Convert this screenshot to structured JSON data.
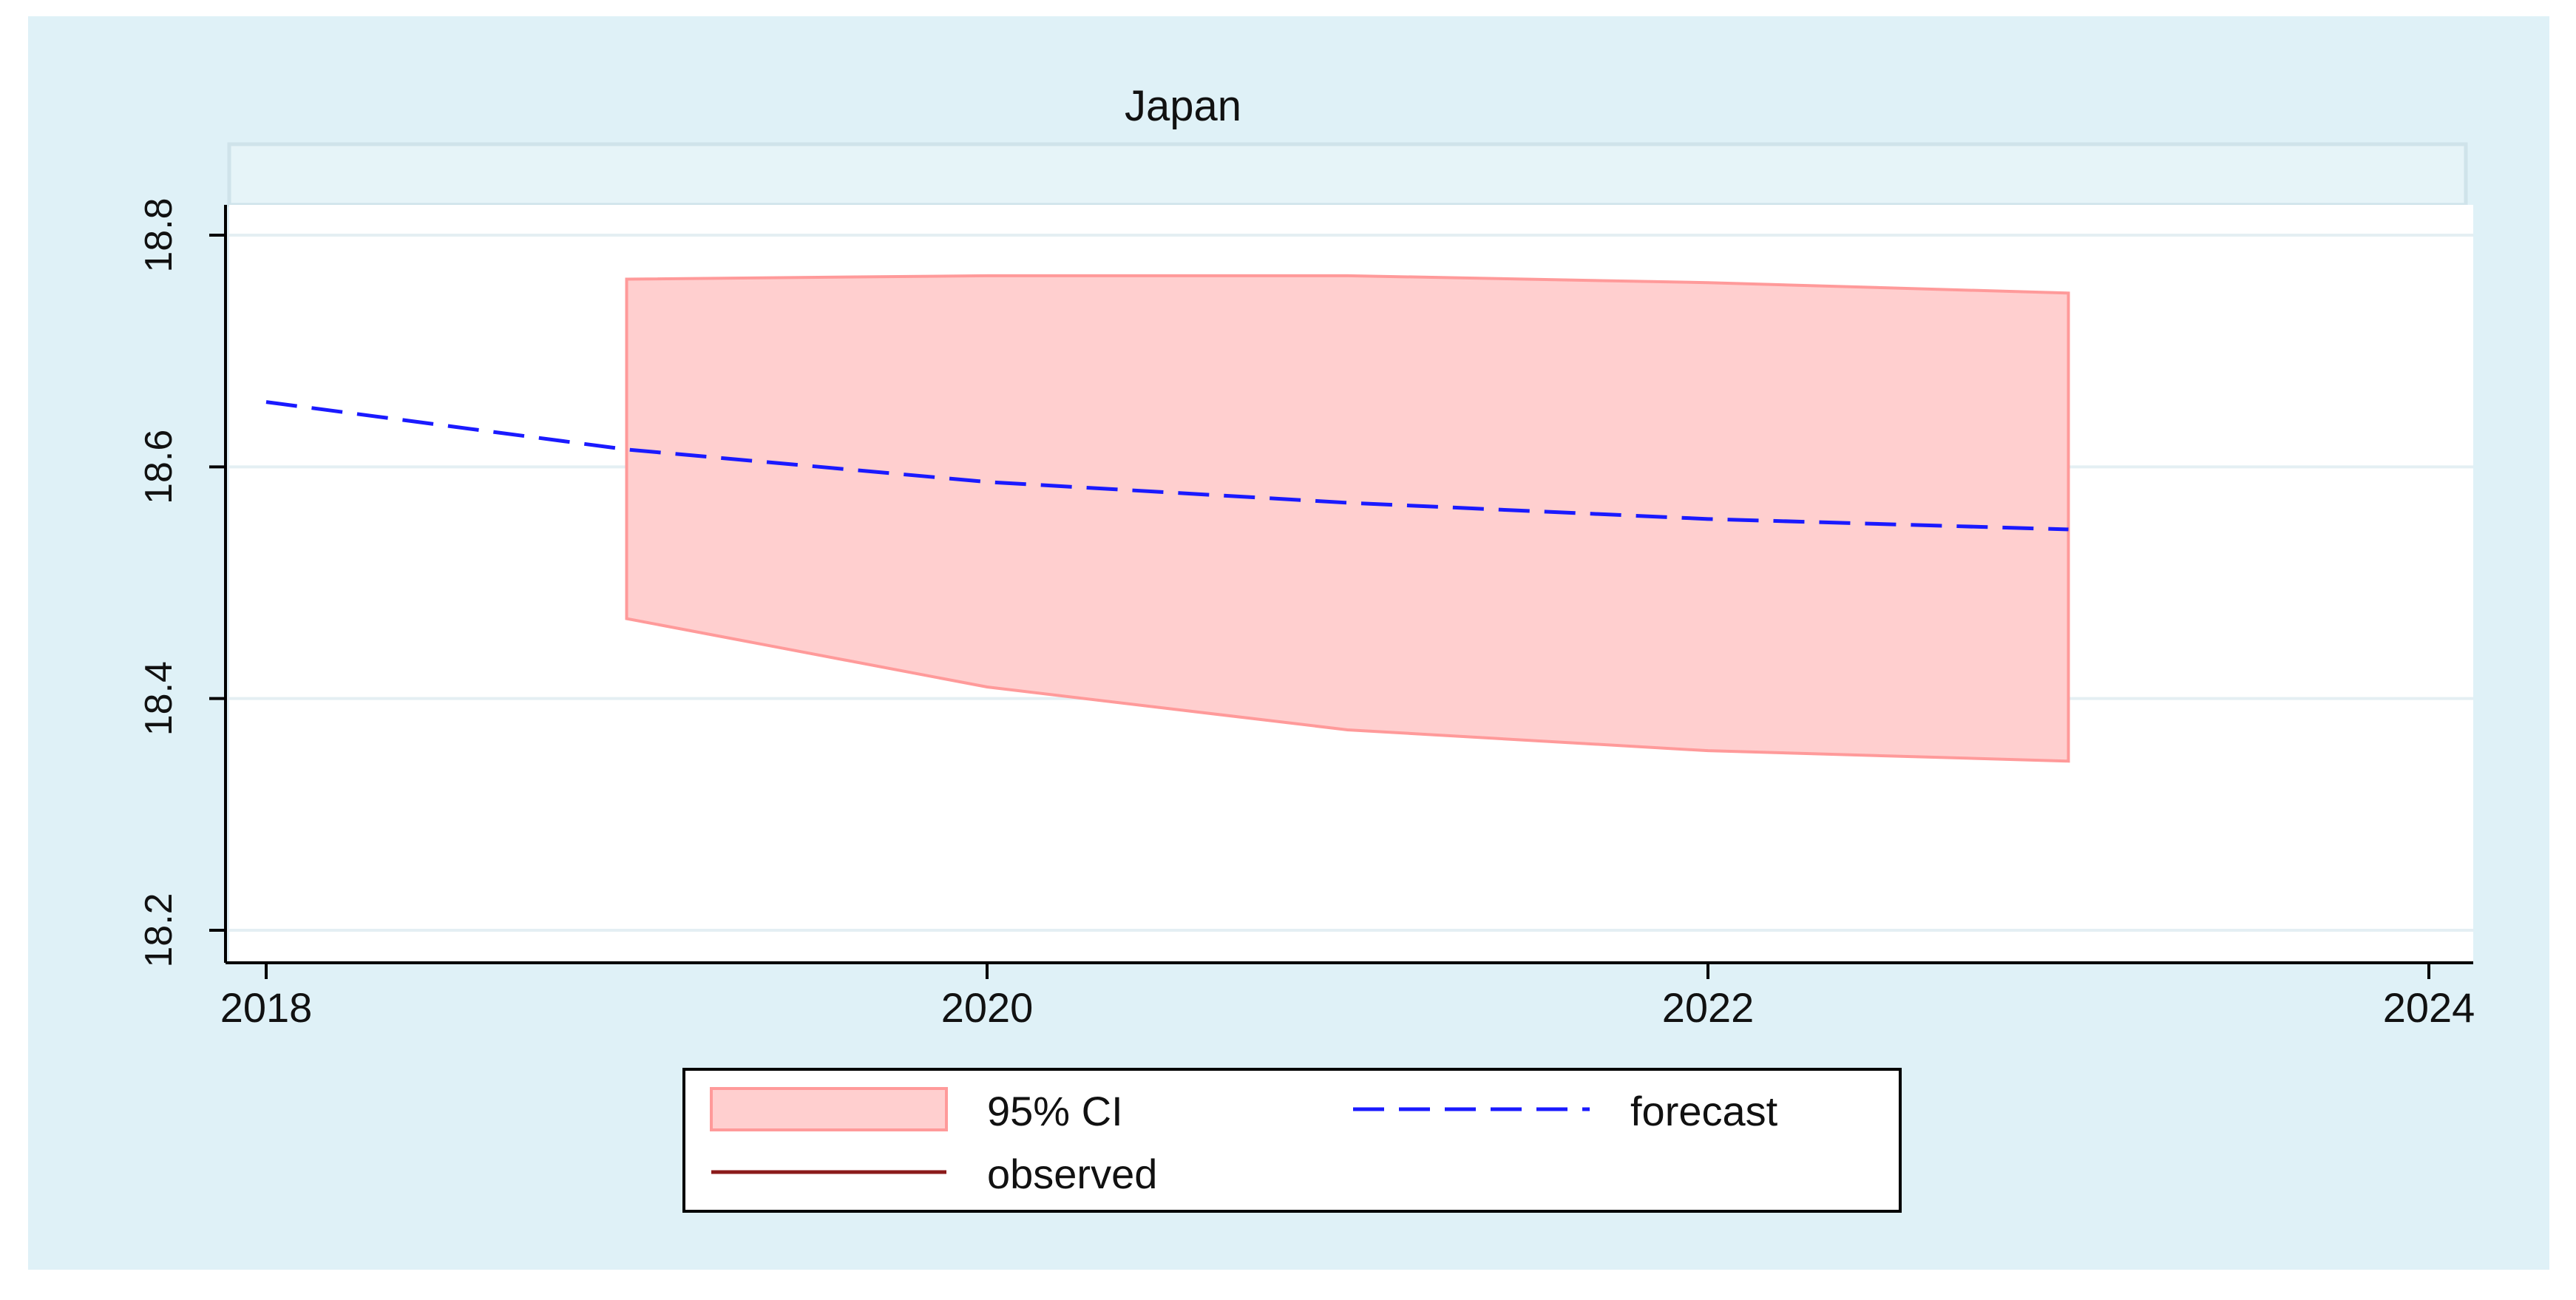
{
  "chart_data": {
    "type": "line",
    "title": "Japan",
    "subtitle": "",
    "xlabel": "",
    "ylabel": "",
    "xlim": [
      2018,
      2024
    ],
    "ylim": [
      18.2,
      18.8
    ],
    "x_ticks": [
      2018,
      2020,
      2022,
      2024
    ],
    "y_ticks": [
      18.2,
      18.4,
      18.6,
      18.8
    ],
    "y_tick_labels": [
      "18.2",
      "18.4",
      "18.6",
      "18.8"
    ],
    "x_tick_labels": [
      "2018",
      "2020",
      "2022",
      "2024"
    ],
    "grid": true,
    "legend_position": "bottom",
    "series": [
      {
        "name": "forecast",
        "style": "dashed",
        "color": "#1a1aff",
        "x": [
          2018,
          2019,
          2020,
          2021,
          2022,
          2023
        ],
        "y": [
          18.656,
          18.615,
          18.587,
          18.569,
          18.555,
          18.546
        ]
      },
      {
        "name": "observed",
        "style": "solid",
        "color": "#8b1a1a",
        "x": [],
        "y": []
      }
    ],
    "ci_band": {
      "name": "95% CI",
      "color": "#ffc8c8",
      "x": [
        2019,
        2020,
        2021,
        2022,
        2023
      ],
      "upper": [
        18.762,
        18.765,
        18.765,
        18.759,
        18.75
      ],
      "lower": [
        18.469,
        18.41,
        18.373,
        18.355,
        18.346
      ]
    }
  },
  "colors": {
    "outer_background": "#dff1f7",
    "plot_background": "#ffffff",
    "grid": "#e4eff3",
    "ci_fill": "#ffcfcf",
    "ci_stroke": "#ff9a9a",
    "forecast": "#1a1aff",
    "observed": "#8b1a1a"
  }
}
